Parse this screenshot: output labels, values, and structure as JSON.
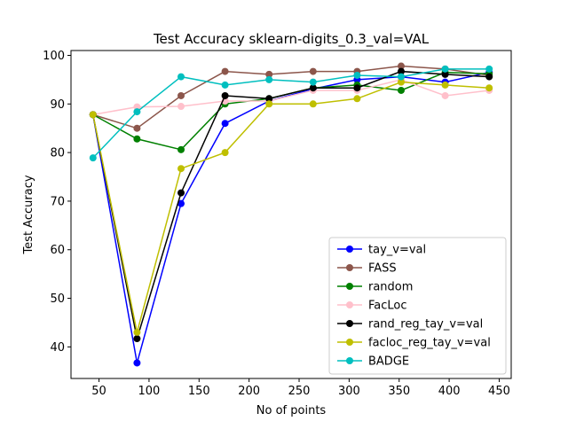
{
  "chart_data": {
    "type": "line",
    "title": "Test Accuracy sklearn-digits_0.3_val=VAL",
    "xlabel": "No of points",
    "ylabel": "Test Accuracy",
    "xlim": [
      22,
      462
    ],
    "ylim": [
      33.5,
      101
    ],
    "xticks": [
      50,
      100,
      150,
      200,
      250,
      300,
      350,
      400,
      450
    ],
    "yticks": [
      40,
      50,
      60,
      70,
      80,
      90,
      100
    ],
    "grid": false,
    "legend_position": "lower-right",
    "x": [
      44,
      88,
      132,
      176,
      220,
      264,
      308,
      352,
      396,
      440
    ],
    "series": [
      {
        "name": "tay_v=val",
        "color": "#0000ff",
        "values": [
          87.8,
          36.7,
          69.5,
          86.0,
          90.6,
          93.1,
          95.0,
          95.6,
          94.5,
          96.5
        ]
      },
      {
        "name": "FASS",
        "color": "#8c564b",
        "values": [
          87.8,
          85.0,
          91.7,
          96.7,
          96.1,
          96.7,
          96.7,
          97.8,
          97.2,
          95.9
        ]
      },
      {
        "name": "random",
        "color": "#008000",
        "values": [
          87.8,
          82.8,
          80.6,
          90.0,
          91.1,
          93.3,
          93.9,
          92.8,
          96.5,
          96.2
        ]
      },
      {
        "name": "FacLoc",
        "color": "#ffc0cb",
        "values": [
          87.8,
          89.4,
          89.5,
          90.6,
          90.6,
          92.8,
          92.8,
          95.0,
          91.7,
          92.8
        ]
      },
      {
        "name": "rand_reg_tay_v=val",
        "color": "#000000",
        "values": [
          87.8,
          41.7,
          71.7,
          91.7,
          91.1,
          93.3,
          93.3,
          96.7,
          96.1,
          95.6
        ]
      },
      {
        "name": "facloc_reg_tay_v=val",
        "color": "#bfbf00",
        "values": [
          87.8,
          43.0,
          76.7,
          80.0,
          90.0,
          90.0,
          91.1,
          94.5,
          93.9,
          93.3
        ]
      },
      {
        "name": "BADGE",
        "color": "#00bfbf",
        "values": [
          78.9,
          88.4,
          95.6,
          93.9,
          95.0,
          94.5,
          95.9,
          95.6,
          97.2,
          97.2
        ]
      }
    ]
  }
}
